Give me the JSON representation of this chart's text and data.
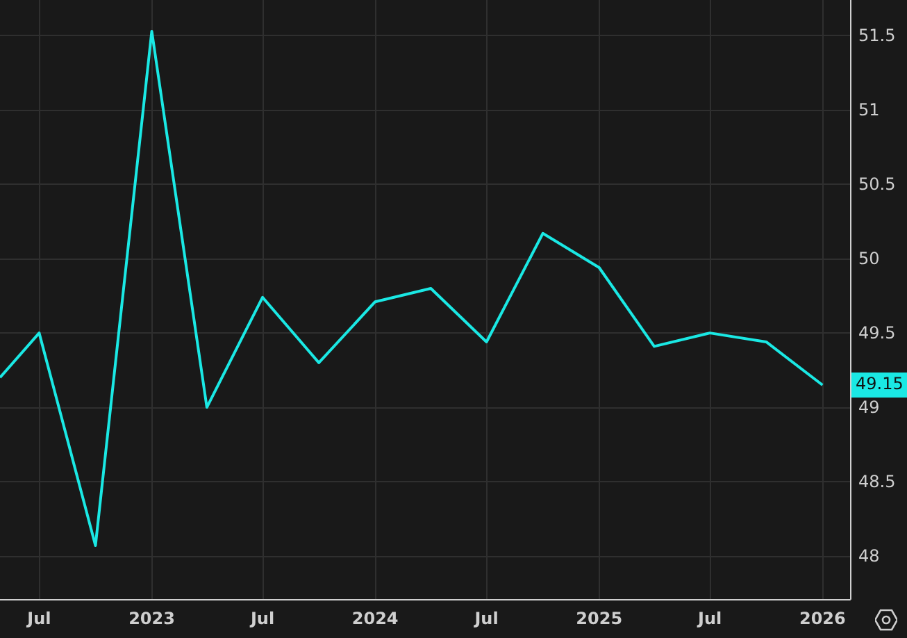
{
  "chart_data": {
    "type": "line",
    "x": [
      "2022-04-28",
      "2022-07-01",
      "2022-10-01",
      "2023-01-01",
      "2023-04-01",
      "2023-07-01",
      "2023-10-01",
      "2024-01-01",
      "2024-04-01",
      "2024-07-01",
      "2024-10-01",
      "2025-01-01",
      "2025-04-01",
      "2025-07-01",
      "2025-10-01",
      "2026-01-01"
    ],
    "series": [
      {
        "color": "#1ae8e4",
        "values": [
          49.2,
          49.5,
          48.07,
          51.53,
          49.0,
          49.74,
          49.3,
          49.71,
          49.8,
          49.44,
          50.17,
          49.94,
          49.41,
          49.5,
          49.44,
          49.15
        ]
      }
    ],
    "xlim": [
      "2022-04-28",
      "2026-02-15"
    ],
    "xticks": [
      {
        "value": "2022-07-01",
        "label": "Jul"
      },
      {
        "value": "2023-01-01",
        "label": "2023"
      },
      {
        "value": "2023-07-01",
        "label": "Jul"
      },
      {
        "value": "2024-01-01",
        "label": "2024"
      },
      {
        "value": "2024-07-01",
        "label": "Jul"
      },
      {
        "value": "2025-01-01",
        "label": "2025"
      },
      {
        "value": "2025-07-01",
        "label": "Jul"
      },
      {
        "value": "2026-01-01",
        "label": "2026"
      }
    ],
    "ylim": [
      47.71,
      51.74
    ],
    "yticks": [
      48,
      48.5,
      49,
      49.5,
      50,
      50.5,
      51,
      51.5
    ],
    "annotations": [
      {
        "text": "49.15",
        "x": "2026-01-01",
        "y": 49.15
      }
    ],
    "grid": true,
    "marker": "none",
    "line_style": "solid"
  }
}
